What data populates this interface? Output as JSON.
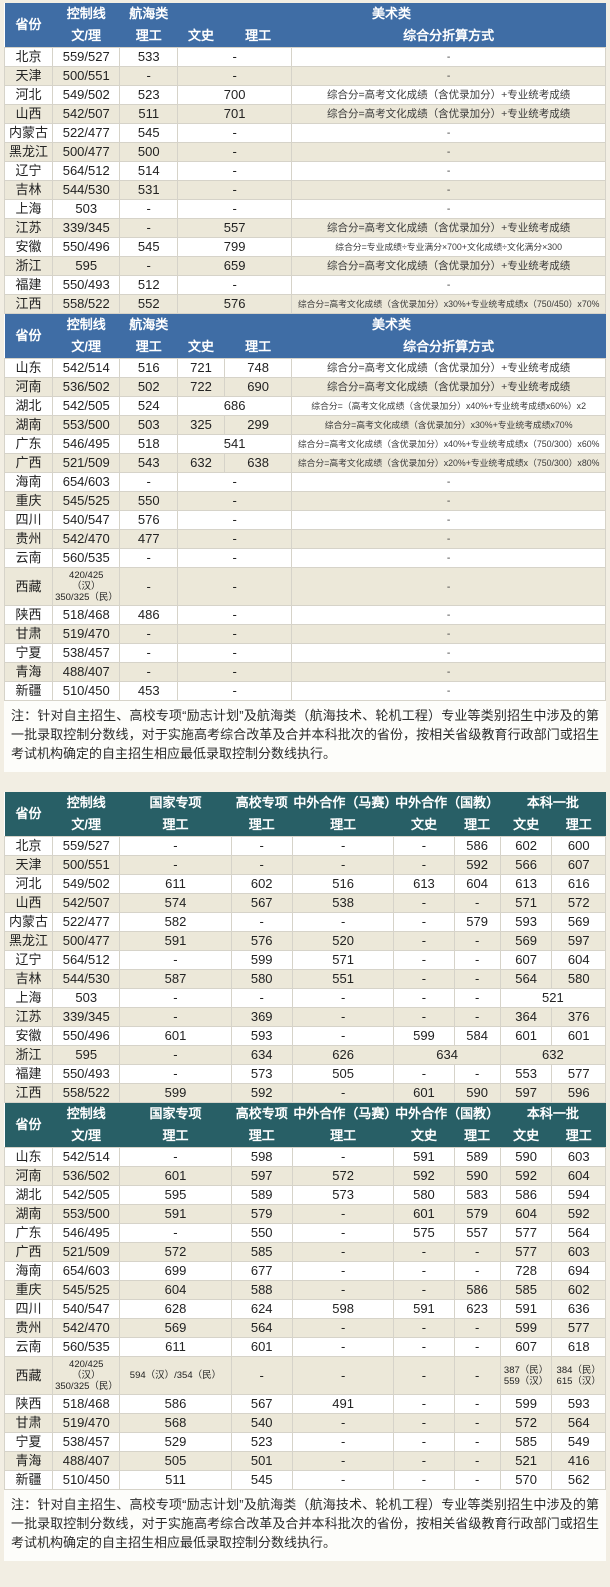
{
  "colors": {
    "header_blue": "#3f6da5",
    "header_teal": "#285f66",
    "row_stripe": "#ece8d9",
    "page_bg": "#f2eee3",
    "border": "#d6d3c9"
  },
  "headers": {
    "art": {
      "province": "省份",
      "ctrl": "控制线",
      "ctrl_sub": "文/理",
      "nav": "航海类",
      "nav_sub": "理工",
      "art_group": "美术类",
      "ws": "文史",
      "lg": "理工",
      "formula": "综合分折算方式"
    },
    "batch": {
      "province": "省份",
      "ctrl": "控制线",
      "ctrl_sub": "文/理",
      "gj": "国家专项",
      "gj_sub": "理工",
      "gx": "高校专项",
      "gx_sub": "理工",
      "ms": "中外合作（马赛）",
      "ms_sub": "理工",
      "gjiao": "中外合作（国教）",
      "gjiao_ws": "文史",
      "gjiao_lg": "理工",
      "bk": "本科一批",
      "bk_ws": "文史",
      "bk_lg": "理工"
    }
  },
  "notes": {
    "note1": "注：针对自主招生、高校专项“励志计划”及航海类（航海技术、轮机工程）专业等类别招生中涉及的第一批录取控制分数线，对于实施高考综合改革及合并本科批次的省份，按相关省级教育行政部门或招生考试机构确定的自主招生相应最低录取控制分数线执行。",
    "note2": "注：针对自主招生、高校专项“励志计划”及航海类（航海技术、轮机工程）专业等类别招生中涉及的第一批录取控制分数线，对于实施高考综合改革及合并本科批次的省份，按相关省级教育行政部门或招生考试机构确定的自主招生相应最低录取控制分数线执行。"
  },
  "tables": {
    "art1": {
      "rows": [
        [
          "北京",
          "559/527",
          "533",
          [
            "-",
            2
          ],
          "-"
        ],
        [
          "天津",
          "500/551",
          "-",
          [
            "-",
            2
          ],
          "-"
        ],
        [
          "河北",
          "549/502",
          "523",
          [
            "700",
            2
          ],
          "综合分=高考文化成绩（含优录加分）+专业统考成绩"
        ],
        [
          "山西",
          "542/507",
          "511",
          [
            "701",
            2
          ],
          "综合分=高考文化成绩（含优录加分）+专业统考成绩"
        ],
        [
          "内蒙古",
          "522/477",
          "545",
          [
            "-",
            2
          ],
          "-"
        ],
        [
          "黑龙江",
          "500/477",
          "500",
          [
            "-",
            2
          ],
          "-"
        ],
        [
          "辽宁",
          "564/512",
          "514",
          [
            "-",
            2
          ],
          "-"
        ],
        [
          "吉林",
          "544/530",
          "531",
          [
            "-",
            2
          ],
          "-"
        ],
        [
          "上海",
          "503",
          "-",
          [
            "-",
            2
          ],
          "-"
        ],
        [
          "江苏",
          "339/345",
          "-",
          [
            "557",
            2
          ],
          "综合分=高考文化成绩（含优录加分）+专业统考成绩"
        ],
        [
          "安徽",
          "550/496",
          "545",
          [
            "799",
            2
          ],
          "综合分=专业成绩÷专业满分×700+文化成绩÷文化满分×300"
        ],
        [
          "浙江",
          "595",
          "-",
          [
            "659",
            2
          ],
          "综合分=高考文化成绩（含优录加分）+专业统考成绩"
        ],
        [
          "福建",
          "550/493",
          "512",
          [
            "-",
            2
          ],
          "-"
        ],
        [
          "江西",
          "558/522",
          "552",
          [
            "576",
            2
          ],
          "综合分=高考文化成绩（含优录加分）x30%+专业统考成绩x（750/450）x70%"
        ]
      ]
    },
    "art2": {
      "rows": [
        [
          "山东",
          "542/514",
          "516",
          "721",
          "748",
          "综合分=高考文化成绩（含优录加分）+专业统考成绩"
        ],
        [
          "河南",
          "536/502",
          "502",
          "722",
          "690",
          "综合分=高考文化成绩（含优录加分）+专业统考成绩"
        ],
        [
          "湖北",
          "542/505",
          "524",
          [
            "686",
            2
          ],
          "综合分=（高考文化成绩（含优录加分）x40%+专业统考成绩x60%）x2"
        ],
        [
          "湖南",
          "553/500",
          "503",
          "325",
          "299",
          "综合分=高考文化成绩（含优录加分）x30%+专业统考成绩x70%"
        ],
        [
          "广东",
          "546/495",
          "518",
          [
            "541",
            2
          ],
          "综合分=高考文化成绩（含优录加分）x40%+专业统考成绩x（750/300）x60%"
        ],
        [
          "广西",
          "521/509",
          "543",
          "632",
          "638",
          "综合分=高考文化成绩（含优录加分）x20%+专业统考成绩x（750/300）x80%"
        ],
        [
          "海南",
          "654/603",
          "-",
          [
            "-",
            2
          ],
          "-"
        ],
        [
          "重庆",
          "545/525",
          "550",
          [
            "-",
            2
          ],
          "-"
        ],
        [
          "四川",
          "540/547",
          "576",
          [
            "-",
            2
          ],
          "-"
        ],
        [
          "贵州",
          "542/470",
          "477",
          [
            "-",
            2
          ],
          "-"
        ],
        [
          "云南",
          "560/535",
          "-",
          [
            "-",
            2
          ],
          "-"
        ],
        [
          "西藏",
          "420/425（汉）\n350/325（民）",
          "-",
          [
            "-",
            2
          ],
          "-"
        ],
        [
          "陕西",
          "518/468",
          "486",
          [
            "-",
            2
          ],
          "-"
        ],
        [
          "甘肃",
          "519/470",
          "-",
          [
            "-",
            2
          ],
          "-"
        ],
        [
          "宁夏",
          "538/457",
          "-",
          [
            "-",
            2
          ],
          "-"
        ],
        [
          "青海",
          "488/407",
          "-",
          [
            "-",
            2
          ],
          "-"
        ],
        [
          "新疆",
          "510/450",
          "453",
          [
            "-",
            2
          ],
          "-"
        ]
      ]
    },
    "batch1": {
      "rows": [
        [
          "北京",
          "559/527",
          "-",
          "-",
          "-",
          "-",
          "586",
          "602",
          "600"
        ],
        [
          "天津",
          "500/551",
          "-",
          "-",
          "-",
          "-",
          "592",
          "566",
          "607"
        ],
        [
          "河北",
          "549/502",
          "611",
          "602",
          "516",
          "613",
          "604",
          "613",
          "616"
        ],
        [
          "山西",
          "542/507",
          "574",
          "567",
          "538",
          "-",
          "-",
          "571",
          "572"
        ],
        [
          "内蒙古",
          "522/477",
          "582",
          "-",
          "-",
          "-",
          "579",
          "593",
          "569"
        ],
        [
          "黑龙江",
          "500/477",
          "591",
          "576",
          "520",
          "-",
          "-",
          "569",
          "597"
        ],
        [
          "辽宁",
          "564/512",
          "-",
          "599",
          "571",
          "-",
          "-",
          "607",
          "604"
        ],
        [
          "吉林",
          "544/530",
          "587",
          "580",
          "551",
          "-",
          "-",
          "564",
          "580"
        ],
        [
          "上海",
          "503",
          "-",
          "-",
          "-",
          "-",
          "-",
          [
            "521",
            2
          ]
        ],
        [
          "江苏",
          "339/345",
          "-",
          "369",
          "-",
          "-",
          "-",
          "364",
          "376"
        ],
        [
          "安徽",
          "550/496",
          "601",
          "593",
          "-",
          "599",
          "584",
          "601",
          "601"
        ],
        [
          "浙江",
          "595",
          "-",
          "634",
          "626",
          [
            "634",
            2
          ],
          [
            "632",
            2
          ]
        ],
        [
          "福建",
          "550/493",
          "-",
          "573",
          "505",
          "-",
          "-",
          "553",
          "577"
        ],
        [
          "江西",
          "558/522",
          "599",
          "592",
          "-",
          "601",
          "590",
          "597",
          "596"
        ]
      ]
    },
    "batch2": {
      "rows": [
        [
          "山东",
          "542/514",
          "-",
          "598",
          "-",
          "591",
          "589",
          "590",
          "603"
        ],
        [
          "河南",
          "536/502",
          "601",
          "597",
          "572",
          "592",
          "590",
          "592",
          "604"
        ],
        [
          "湖北",
          "542/505",
          "595",
          "589",
          "573",
          "580",
          "583",
          "586",
          "594"
        ],
        [
          "湖南",
          "553/500",
          "591",
          "579",
          "-",
          "601",
          "579",
          "604",
          "592"
        ],
        [
          "广东",
          "546/495",
          "-",
          "550",
          "-",
          "575",
          "557",
          "577",
          "564"
        ],
        [
          "广西",
          "521/509",
          "572",
          "585",
          "-",
          "-",
          "-",
          "577",
          "603"
        ],
        [
          "海南",
          "654/603",
          "699",
          "677",
          "-",
          "-",
          "-",
          "728",
          "694"
        ],
        [
          "重庆",
          "545/525",
          "604",
          "588",
          "-",
          "-",
          "586",
          "585",
          "602"
        ],
        [
          "四川",
          "540/547",
          "628",
          "624",
          "598",
          "591",
          "623",
          "591",
          "636"
        ],
        [
          "贵州",
          "542/470",
          "569",
          "564",
          "-",
          "-",
          "-",
          "599",
          "577"
        ],
        [
          "云南",
          "560/535",
          "611",
          "601",
          "-",
          "-",
          "-",
          "607",
          "618"
        ],
        [
          "西藏",
          "420/425（汉）\n350/325（民）",
          "594（汉）/354（民）",
          "-",
          "-",
          "-",
          "-",
          "387（民）\n559（汉）",
          "384（民）\n615（汉）"
        ],
        [
          "陕西",
          "518/468",
          "586",
          "567",
          "491",
          "-",
          "-",
          "599",
          "593"
        ],
        [
          "甘肃",
          "519/470",
          "568",
          "540",
          "-",
          "-",
          "-",
          "572",
          "564"
        ],
        [
          "宁夏",
          "538/457",
          "529",
          "523",
          "-",
          "-",
          "-",
          "585",
          "549"
        ],
        [
          "青海",
          "488/407",
          "505",
          "501",
          "-",
          "-",
          "-",
          "521",
          "416"
        ],
        [
          "新疆",
          "510/450",
          "511",
          "545",
          "-",
          "-",
          "-",
          "570",
          "562"
        ]
      ]
    }
  }
}
